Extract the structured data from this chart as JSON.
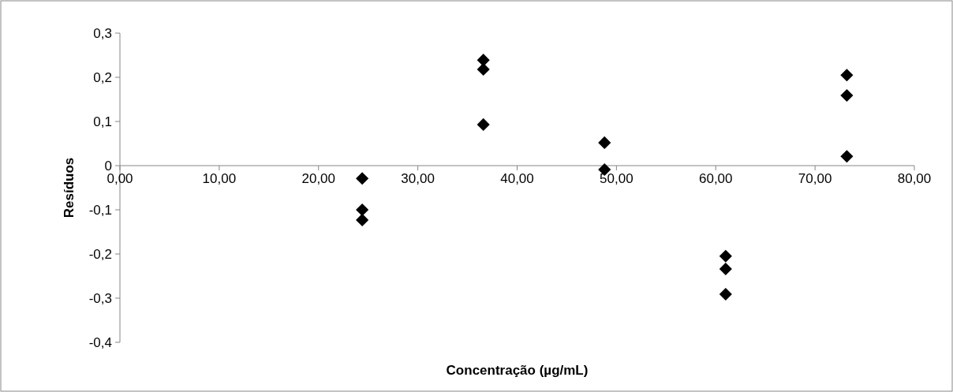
{
  "chart_data": {
    "type": "scatter",
    "xlabel": "Concentração (µg/mL)",
    "ylabel": "Resíduos",
    "marker": "diamond",
    "grid": false,
    "series": [
      {
        "color": "#000000",
        "x": [
          24.4,
          24.4,
          24.4,
          36.6,
          36.6,
          36.6,
          48.8,
          48.8,
          61.0,
          61.0,
          61.0,
          73.2,
          73.2,
          73.2
        ],
        "values": [
          -0.029,
          -0.1,
          -0.123,
          0.239,
          0.218,
          0.093,
          0.052,
          -0.009,
          -0.205,
          -0.234,
          -0.291,
          0.205,
          0.159,
          0.021
        ]
      }
    ],
    "xlim": [
      0,
      80
    ],
    "xticks": [
      {
        "value": 0,
        "label": "0,00"
      },
      {
        "value": 10,
        "label": "10,00"
      },
      {
        "value": 20,
        "label": "20,00"
      },
      {
        "value": 30,
        "label": "30,00"
      },
      {
        "value": 40,
        "label": "40,00"
      },
      {
        "value": 50,
        "label": "50,00"
      },
      {
        "value": 60,
        "label": "60,00"
      },
      {
        "value": 70,
        "label": "70,00"
      },
      {
        "value": 80,
        "label": "80,00"
      }
    ],
    "ylim": [
      -0.4,
      0.3
    ],
    "yticks": [
      {
        "value": -0.4,
        "label": "-0,4"
      },
      {
        "value": -0.3,
        "label": "-0,3"
      },
      {
        "value": -0.2,
        "label": "-0,2"
      },
      {
        "value": -0.1,
        "label": "-0,1"
      },
      0,
      {
        "value": 0.1,
        "label": "0,1"
      },
      {
        "value": 0.2,
        "label": "0,2"
      },
      {
        "value": 0.3,
        "label": "0,3"
      }
    ]
  }
}
